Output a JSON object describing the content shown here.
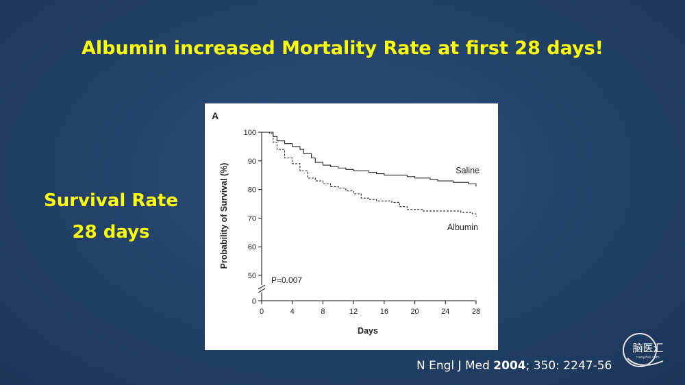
{
  "slide": {
    "title": "Albumin increased Mortality Rate at first 28 days!",
    "side_label_line1": "Survival Rate",
    "side_label_line2": "28 days"
  },
  "citation": {
    "journal": "N Engl J Med ",
    "year": "2004",
    "rest": "; 350: 2247-56"
  },
  "logo": {
    "text": "脑医汇",
    "subtext": "naoyihui.com"
  },
  "chart_data": {
    "type": "line",
    "panel_label": "A",
    "title": "",
    "xlabel": "Days",
    "ylabel": "Probability of Survival (%)",
    "xlim": [
      0,
      28
    ],
    "ylim": [
      0,
      100
    ],
    "axis_break": "between 0 and 50 on y-axis",
    "x_ticks": [
      0,
      4,
      8,
      12,
      16,
      20,
      24,
      28
    ],
    "y_ticks": [
      0,
      50,
      60,
      70,
      80,
      90,
      100
    ],
    "annotation": "P=0.007",
    "grid": false,
    "series": [
      {
        "name": "Saline",
        "style": "solid",
        "steps": [
          [
            0,
            100
          ],
          [
            1,
            100
          ],
          [
            1.5,
            98.5
          ],
          [
            2,
            97
          ],
          [
            3,
            96
          ],
          [
            4,
            95
          ],
          [
            5,
            94
          ],
          [
            5.5,
            92.5
          ],
          [
            6.5,
            91
          ],
          [
            7,
            89.5
          ],
          [
            8,
            88.5
          ],
          [
            9,
            88
          ],
          [
            10,
            87.5
          ],
          [
            11,
            87
          ],
          [
            12,
            86.5
          ],
          [
            14,
            86
          ],
          [
            15,
            85.5
          ],
          [
            16,
            85
          ],
          [
            19,
            84.5
          ],
          [
            20,
            84
          ],
          [
            22,
            83.5
          ],
          [
            23,
            83
          ],
          [
            25,
            82.5
          ],
          [
            27,
            82
          ],
          [
            28,
            81
          ]
        ]
      },
      {
        "name": "Albumin",
        "style": "dashed",
        "steps": [
          [
            0,
            100
          ],
          [
            1,
            99.5
          ],
          [
            1.5,
            96.5
          ],
          [
            2,
            94
          ],
          [
            3,
            91
          ],
          [
            4,
            89
          ],
          [
            5,
            86.5
          ],
          [
            6,
            84
          ],
          [
            7,
            83
          ],
          [
            8,
            82
          ],
          [
            9,
            81
          ],
          [
            10,
            80.5
          ],
          [
            11,
            79.5
          ],
          [
            12,
            78.5
          ],
          [
            13,
            77
          ],
          [
            14,
            76.5
          ],
          [
            15,
            76
          ],
          [
            17,
            75.5
          ],
          [
            18,
            74
          ],
          [
            19,
            73
          ],
          [
            21,
            72.5
          ],
          [
            26,
            72
          ],
          [
            27.5,
            71.5
          ],
          [
            28,
            70.5
          ]
        ]
      }
    ]
  }
}
